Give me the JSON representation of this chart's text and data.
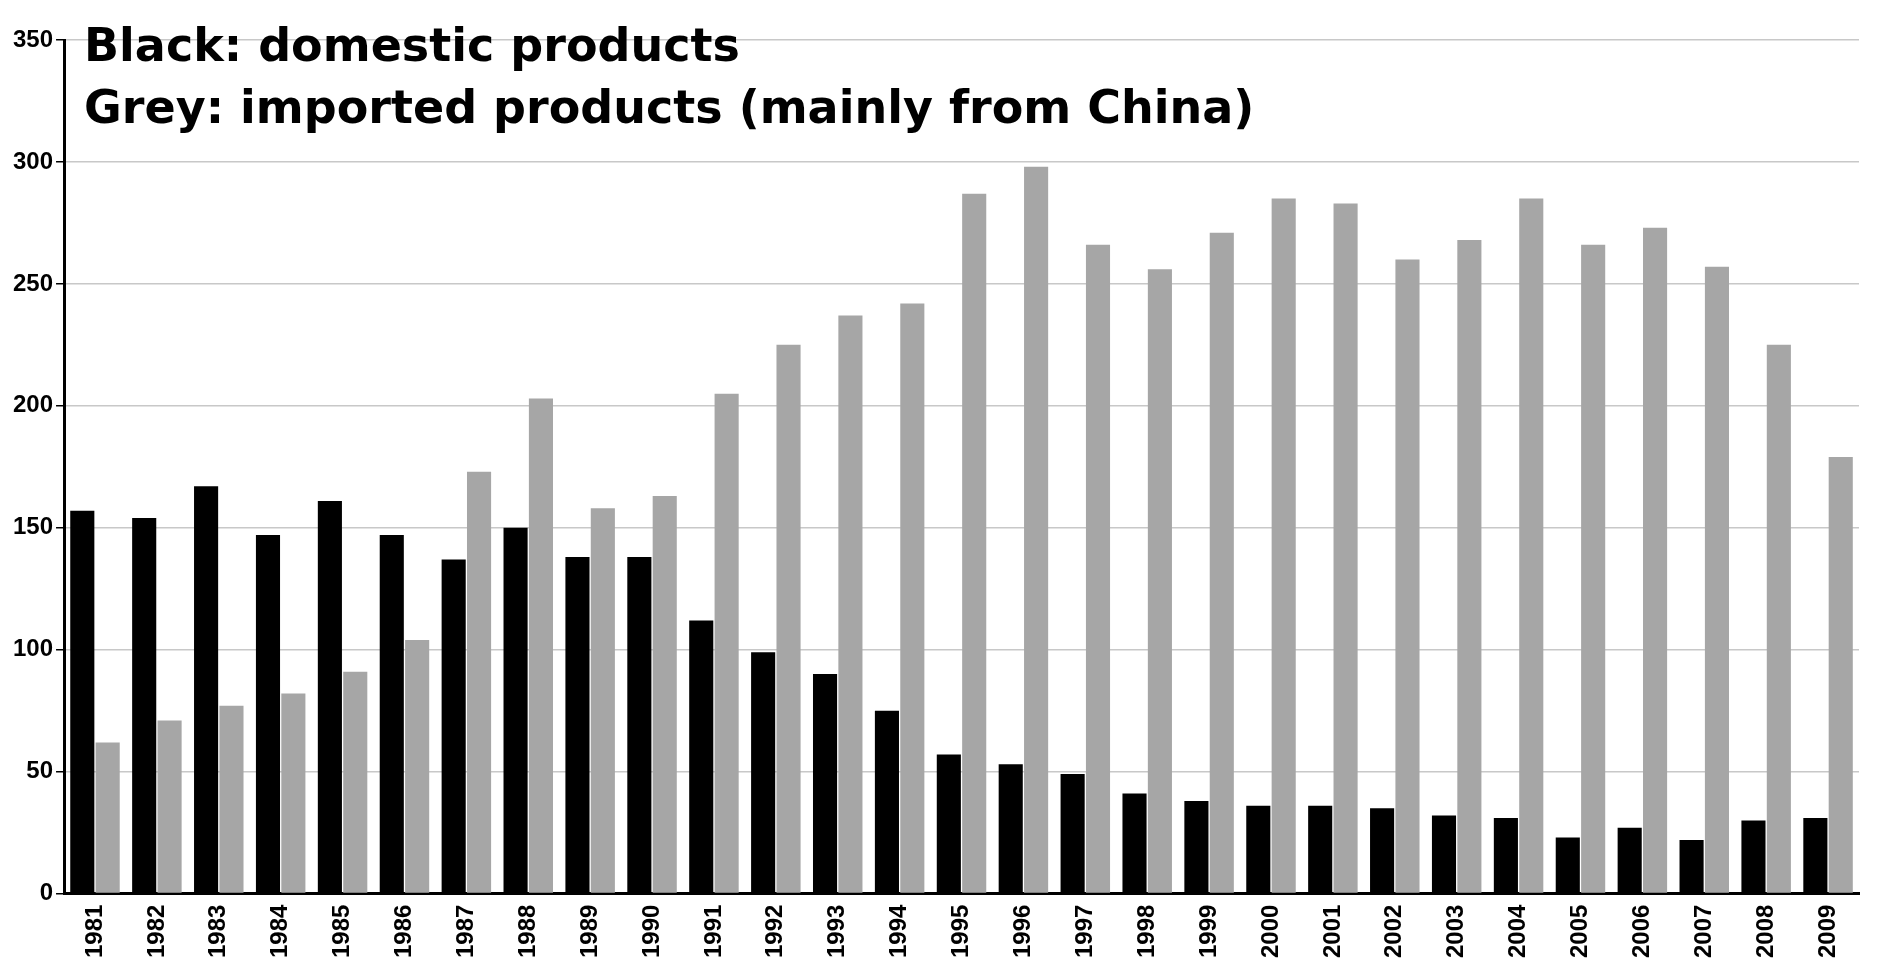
{
  "chart_data": {
    "type": "bar",
    "categories": [
      "1981",
      "1982",
      "1983",
      "1984",
      "1985",
      "1986",
      "1987",
      "1988",
      "1989",
      "1990",
      "1991",
      "1992",
      "1993",
      "1994",
      "1995",
      "1996",
      "1997",
      "1998",
      "1999",
      "2000",
      "2001",
      "2002",
      "2003",
      "2004",
      "2005",
      "2006",
      "2007",
      "2008",
      "2009"
    ],
    "series": [
      {
        "color": "#000000",
        "values": [
          157,
          154,
          167,
          147,
          161,
          147,
          137,
          150,
          138,
          138,
          112,
          99,
          90,
          75,
          57,
          53,
          49,
          41,
          38,
          36,
          36,
          35,
          32,
          31,
          23,
          27,
          22,
          30,
          31
        ]
      },
      {
        "color": "#a6a6a6",
        "values": [
          62,
          71,
          77,
          82,
          91,
          104,
          173,
          203,
          158,
          163,
          205,
          225,
          237,
          242,
          287,
          298,
          266,
          256,
          271,
          285,
          283,
          260,
          268,
          285,
          266,
          273,
          257,
          225,
          179
        ]
      }
    ],
    "ylim": [
      0,
      350
    ],
    "yticks": [
      0,
      50,
      100,
      150,
      200,
      250,
      300,
      350
    ],
    "grid": "y",
    "legend": false,
    "annotations": [
      "Black: domestic products",
      "Grey: imported products (mainly from China)"
    ]
  }
}
